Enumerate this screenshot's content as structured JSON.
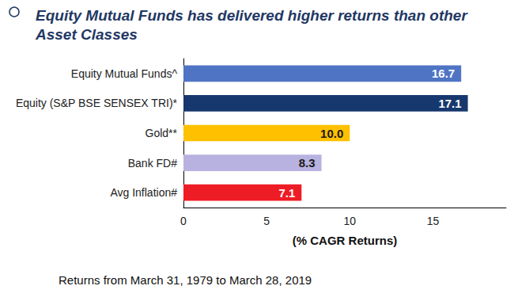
{
  "chart_data": {
    "type": "bar",
    "orientation": "horizontal",
    "title": "Equity Mutual Funds has delivered higher returns than other Asset Classes",
    "categories": [
      "Equity Mutual Funds^",
      "Equity (S&P BSE SENSEX TRI)*",
      "Gold**",
      "Bank FD#",
      "Avg Inflation#"
    ],
    "values": [
      16.7,
      17.1,
      10.0,
      8.3,
      7.1
    ],
    "value_labels": [
      "16.7",
      "17.1",
      "10.0",
      "8.3",
      "7.1"
    ],
    "colors": [
      "#4f74c4",
      "#17386e",
      "#ffc000",
      "#b7b2df",
      "#ee1c25"
    ],
    "xlabel": "(% CAGR Returns)",
    "xlim": [
      0,
      19.4
    ],
    "xticks": [
      0,
      5,
      10,
      15
    ],
    "grid": false,
    "data_labels": true,
    "annotations": [
      "Returns from March 31, 1979 to March 28, 2019"
    ]
  }
}
